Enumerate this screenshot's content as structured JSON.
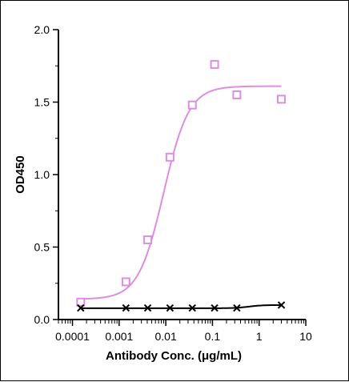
{
  "chart_data": {
    "type": "scatter",
    "title": "",
    "xlabel": "Antibody Conc. (μg/mL)",
    "ylabel": "OD450",
    "x_scale": "log",
    "xlim": [
      5e-05,
      10
    ],
    "ylim": [
      0,
      2.0
    ],
    "x_ticks": [
      {
        "value": 0.0001,
        "label": "0.0001"
      },
      {
        "value": 0.001,
        "label": "0.001"
      },
      {
        "value": 0.01,
        "label": "0.01"
      },
      {
        "value": 0.1,
        "label": "0.1"
      },
      {
        "value": 1,
        "label": "1"
      },
      {
        "value": 10,
        "label": "10"
      }
    ],
    "y_ticks": [
      {
        "value": 0.0,
        "label": "0.0"
      },
      {
        "value": 0.5,
        "label": "0.5"
      },
      {
        "value": 1.0,
        "label": "1.0"
      },
      {
        "value": 1.5,
        "label": "1.5"
      },
      {
        "value": 2.0,
        "label": "2.0"
      }
    ],
    "grid": false,
    "legend": false,
    "series": [
      {
        "marker": "square",
        "color": "#dd8ee0",
        "x": [
          0.00015,
          0.0014,
          0.0041,
          0.0123,
          0.037,
          0.111,
          0.333,
          3.0
        ],
        "y": [
          0.12,
          0.26,
          0.55,
          1.12,
          1.48,
          1.76,
          1.55,
          1.52
        ],
        "fit": {
          "bottom": 0.14,
          "top": 1.61,
          "ec50": 0.009,
          "hill": 1.6
        }
      },
      {
        "marker": "x",
        "color": "#000000",
        "x": [
          0.00015,
          0.0014,
          0.0041,
          0.0123,
          0.037,
          0.111,
          0.333,
          3.0
        ],
        "y": [
          0.08,
          0.08,
          0.08,
          0.08,
          0.08,
          0.08,
          0.08,
          0.1
        ],
        "fit": {
          "bottom": 0.078,
          "top": 0.1,
          "ec50": 0.6,
          "hill": 3
        }
      }
    ]
  }
}
